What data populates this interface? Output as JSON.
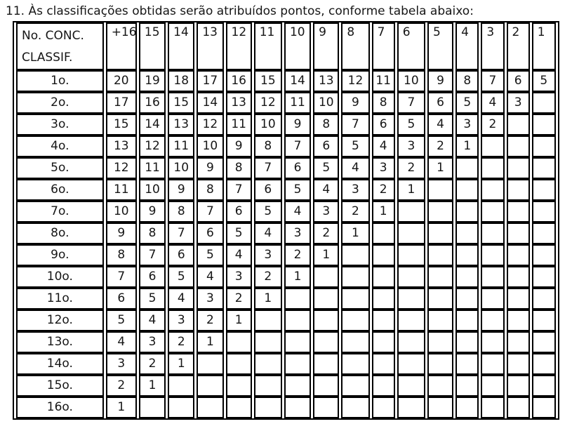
{
  "title": "11. Às classificações obtidas serão atribuídos pontos, conforme tabela abaixo:",
  "colors": {
    "border": "#000000",
    "background": "#ffffff",
    "text": "#161616"
  },
  "table": {
    "corner": {
      "line1": "No. CONC.",
      "line2": "CLASSIF."
    },
    "columns": [
      "+16",
      "15",
      "14",
      "13",
      "12",
      "11",
      "10",
      "9",
      "8",
      "7",
      "6",
      "5",
      "4",
      "3",
      "2",
      "1"
    ],
    "rows": [
      {
        "label": "1o.",
        "values": [
          "20",
          "19",
          "18",
          "17",
          "16",
          "15",
          "14",
          "13",
          "12",
          "11",
          "10",
          "9",
          "8",
          "7",
          "6",
          "5"
        ]
      },
      {
        "label": "2o.",
        "values": [
          "17",
          "16",
          "15",
          "14",
          "13",
          "12",
          "11",
          "10",
          "9",
          "8",
          "7",
          "6",
          "5",
          "4",
          "3",
          ""
        ]
      },
      {
        "label": "3o.",
        "values": [
          "15",
          "14",
          "13",
          "12",
          "11",
          "10",
          "9",
          "8",
          "7",
          "6",
          "5",
          "4",
          "3",
          "2",
          "",
          ""
        ]
      },
      {
        "label": "4o.",
        "values": [
          "13",
          "12",
          "11",
          "10",
          "9",
          "8",
          "7",
          "6",
          "5",
          "4",
          "3",
          "2",
          "1",
          "",
          "",
          ""
        ]
      },
      {
        "label": "5o.",
        "values": [
          "12",
          "11",
          "10",
          "9",
          "8",
          "7",
          "6",
          "5",
          "4",
          "3",
          "2",
          "1",
          "",
          "",
          "",
          ""
        ]
      },
      {
        "label": "6o.",
        "values": [
          "11",
          "10",
          "9",
          "8",
          "7",
          "6",
          "5",
          "4",
          "3",
          "2",
          "1",
          "",
          "",
          "",
          "",
          ""
        ]
      },
      {
        "label": "7o.",
        "values": [
          "10",
          "9",
          "8",
          "7",
          "6",
          "5",
          "4",
          "3",
          "2",
          "1",
          "",
          "",
          "",
          "",
          "",
          ""
        ]
      },
      {
        "label": "8o.",
        "values": [
          "9",
          "8",
          "7",
          "6",
          "5",
          "4",
          "3",
          "2",
          "1",
          "",
          "",
          "",
          "",
          "",
          "",
          ""
        ]
      },
      {
        "label": "9o.",
        "values": [
          "8",
          "7",
          "6",
          "5",
          "4",
          "3",
          "2",
          "1",
          "",
          "",
          "",
          "",
          "",
          "",
          "",
          ""
        ]
      },
      {
        "label": "10o.",
        "values": [
          "7",
          "6",
          "5",
          "4",
          "3",
          "2",
          "1",
          "",
          "",
          "",
          "",
          "",
          "",
          "",
          "",
          ""
        ]
      },
      {
        "label": "11o.",
        "values": [
          "6",
          "5",
          "4",
          "3",
          "2",
          "1",
          "",
          "",
          "",
          "",
          "",
          "",
          "",
          "",
          "",
          ""
        ]
      },
      {
        "label": "12o.",
        "values": [
          "5",
          "4",
          "3",
          "2",
          "1",
          "",
          "",
          "",
          "",
          "",
          "",
          "",
          "",
          "",
          "",
          ""
        ]
      },
      {
        "label": "13o.",
        "values": [
          "4",
          "3",
          "2",
          "1",
          "",
          "",
          "",
          "",
          "",
          "",
          "",
          "",
          "",
          "",
          "",
          ""
        ]
      },
      {
        "label": "14o.",
        "values": [
          "3",
          "2",
          "1",
          "",
          "",
          "",
          "",
          "",
          "",
          "",
          "",
          "",
          "",
          "",
          "",
          ""
        ]
      },
      {
        "label": "15o.",
        "values": [
          "2",
          "1",
          "",
          "",
          "",
          "",
          "",
          "",
          "",
          "",
          "",
          "",
          "",
          "",
          "",
          ""
        ]
      },
      {
        "label": "16o.",
        "values": [
          "1",
          "",
          "",
          "",
          "",
          "",
          "",
          "",
          "",
          "",
          "",
          "",
          "",
          "",
          "",
          ""
        ]
      }
    ]
  }
}
